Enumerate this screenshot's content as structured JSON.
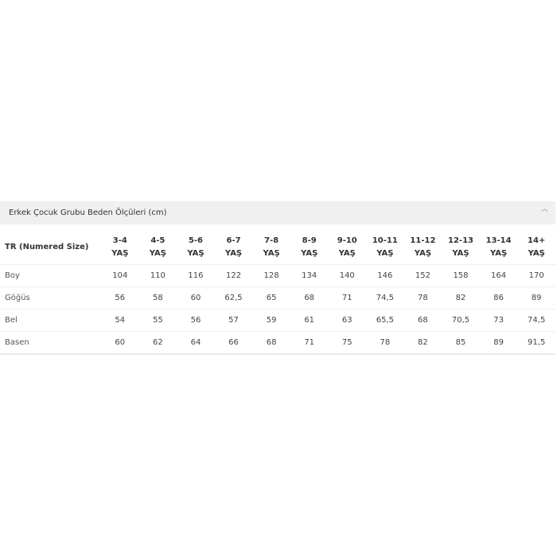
{
  "title": "Erkek Çocuk Grubu Beden Ölçüleri (cm)",
  "corner_header": "TR (Numered Size)",
  "columns": [
    [
      "3-4",
      "YAŞ"
    ],
    [
      "4-5",
      "YAŞ"
    ],
    [
      "5-6",
      "YAŞ"
    ],
    [
      "6-7",
      "YAŞ"
    ],
    [
      "7-8",
      "YAŞ"
    ],
    [
      "8-9",
      "YAŞ"
    ],
    [
      "9-10",
      "YAŞ"
    ],
    [
      "10-11",
      "YAŞ"
    ],
    [
      "11-12",
      "YAŞ"
    ],
    [
      "12-13",
      "YAŞ"
    ],
    [
      "13-14",
      "YAŞ"
    ],
    [
      "14+",
      "YAŞ"
    ]
  ],
  "rows": [
    {
      "label": "Boy",
      "values": [
        "104",
        "110",
        "116",
        "122",
        "128",
        "134",
        "140",
        "146",
        "152",
        "158",
        "164",
        "170"
      ]
    },
    {
      "label": "Göğüs",
      "values": [
        "56",
        "58",
        "60",
        "62,5",
        "65",
        "68",
        "71",
        "74,5",
        "78",
        "82",
        "86",
        "89"
      ]
    },
    {
      "label": "Bel",
      "values": [
        "54",
        "55",
        "56",
        "57",
        "59",
        "61",
        "63",
        "65,5",
        "68",
        "70,5",
        "73",
        "74,5"
      ]
    },
    {
      "label": "Basen",
      "values": [
        "60",
        "62",
        "64",
        "66",
        "68",
        "71",
        "75",
        "78",
        "82",
        "85",
        "89",
        "91,5"
      ]
    }
  ]
}
